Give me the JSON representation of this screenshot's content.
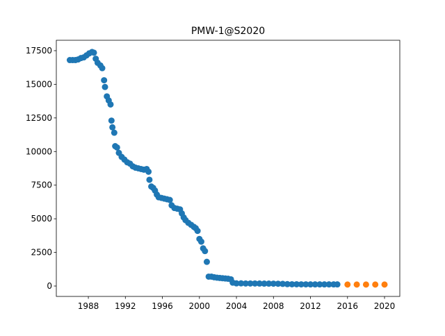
{
  "chart_data": {
    "type": "scatter",
    "title": "PMW-1@S2020",
    "series": [
      {
        "color": "#1f77b4",
        "x": [
          1986.0,
          1986.3,
          1986.6,
          1986.9,
          1987.2,
          1987.5,
          1987.8,
          1988.1,
          1988.4,
          1988.6,
          1988.8,
          1989.0,
          1989.3,
          1989.5,
          1989.7,
          1989.8,
          1990.0,
          1990.2,
          1990.4,
          1990.5,
          1990.6,
          1990.8,
          1990.9,
          1991.1,
          1991.3,
          1991.6,
          1991.9,
          1992.2,
          1992.5,
          1992.8,
          1993.1,
          1993.4,
          1993.7,
          1994.0,
          1994.3,
          1994.5,
          1994.6,
          1994.8,
          1995.0,
          1995.2,
          1995.4,
          1995.6,
          1995.9,
          1996.2,
          1996.5,
          1996.8,
          1997.0,
          1997.3,
          1997.6,
          1997.9,
          1998.1,
          1998.3,
          1998.5,
          1998.8,
          1999.1,
          1999.4,
          1999.6,
          1999.8,
          2000.0,
          2000.2,
          2000.4,
          2000.6,
          2000.8,
          2001.0,
          2001.3,
          2001.6,
          2001.9,
          2002.2,
          2002.5,
          2002.8,
          2003.1,
          2003.4,
          2003.6,
          2004.0,
          2004.5,
          2005.0,
          2005.5,
          2006.0,
          2006.5,
          2007.0,
          2007.5,
          2008.0,
          2008.5,
          2009.0,
          2009.5,
          2010.0,
          2010.5,
          2011.0,
          2011.5,
          2012.0,
          2012.5,
          2013.0,
          2013.5,
          2014.0,
          2014.5,
          2014.9
        ],
        "values": [
          16800,
          16800,
          16800,
          16850,
          16950,
          17000,
          17150,
          17300,
          17400,
          17350,
          16900,
          16600,
          16400,
          16200,
          15300,
          14800,
          14100,
          13800,
          13500,
          12300,
          11800,
          11400,
          10400,
          10300,
          9900,
          9600,
          9400,
          9200,
          9100,
          8900,
          8800,
          8750,
          8700,
          8650,
          8700,
          8500,
          7900,
          7400,
          7300,
          7100,
          6800,
          6600,
          6550,
          6500,
          6450,
          6400,
          6000,
          5800,
          5750,
          5700,
          5400,
          5100,
          4900,
          4700,
          4550,
          4400,
          4300,
          4100,
          3500,
          3300,
          2800,
          2600,
          1800,
          700,
          700,
          650,
          620,
          600,
          580,
          560,
          540,
          500,
          250,
          200,
          200,
          190,
          190,
          190,
          185,
          180,
          180,
          175,
          170,
          160,
          140,
          130,
          130,
          125,
          125,
          120,
          120,
          120,
          120,
          120,
          120,
          120
        ]
      },
      {
        "color": "#ff7f0e",
        "x": [
          2016,
          2017,
          2018,
          2019,
          2020
        ],
        "values": [
          110,
          110,
          110,
          110,
          110
        ]
      }
    ],
    "xlim": [
      1984.54,
      2021.65
    ],
    "xticks": [
      1988,
      1992,
      1996,
      2000,
      2004,
      2008,
      2012,
      2016,
      2020
    ],
    "ylim": [
      -774,
      18274
    ],
    "yticks": [
      0,
      2500,
      5000,
      7500,
      10000,
      12500,
      15000,
      17500
    ]
  }
}
